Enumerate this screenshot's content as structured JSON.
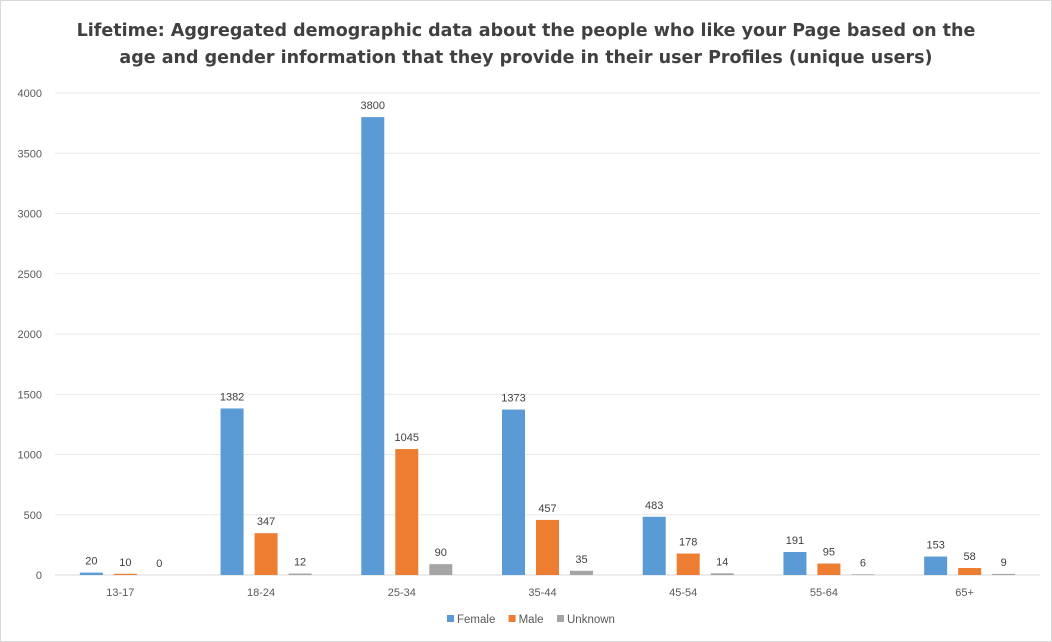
{
  "chart_data": {
    "type": "bar",
    "title_lines": [
      "Lifetime: Aggregated demographic data about the people who like your Page based on the",
      "age and gender information that they provide in their user Profiles (unique users)"
    ],
    "categories": [
      "13-17",
      "18-24",
      "25-34",
      "35-44",
      "45-54",
      "55-64",
      "65+"
    ],
    "series": [
      {
        "name": "Female",
        "color": "#5b9bd5",
        "values": [
          20,
          1382,
          3800,
          1373,
          483,
          191,
          153
        ]
      },
      {
        "name": "Male",
        "color": "#ed7d31",
        "values": [
          10,
          347,
          1045,
          457,
          178,
          95,
          58
        ]
      },
      {
        "name": "Unknown",
        "color": "#a5a5a5",
        "values": [
          0,
          12,
          90,
          35,
          14,
          6,
          9
        ]
      }
    ],
    "yticks": [
      0,
      500,
      1000,
      1500,
      2000,
      2500,
      3000,
      3500,
      4000
    ],
    "ylim": [
      0,
      4000
    ],
    "grid": true,
    "legend_position": "bottom"
  }
}
